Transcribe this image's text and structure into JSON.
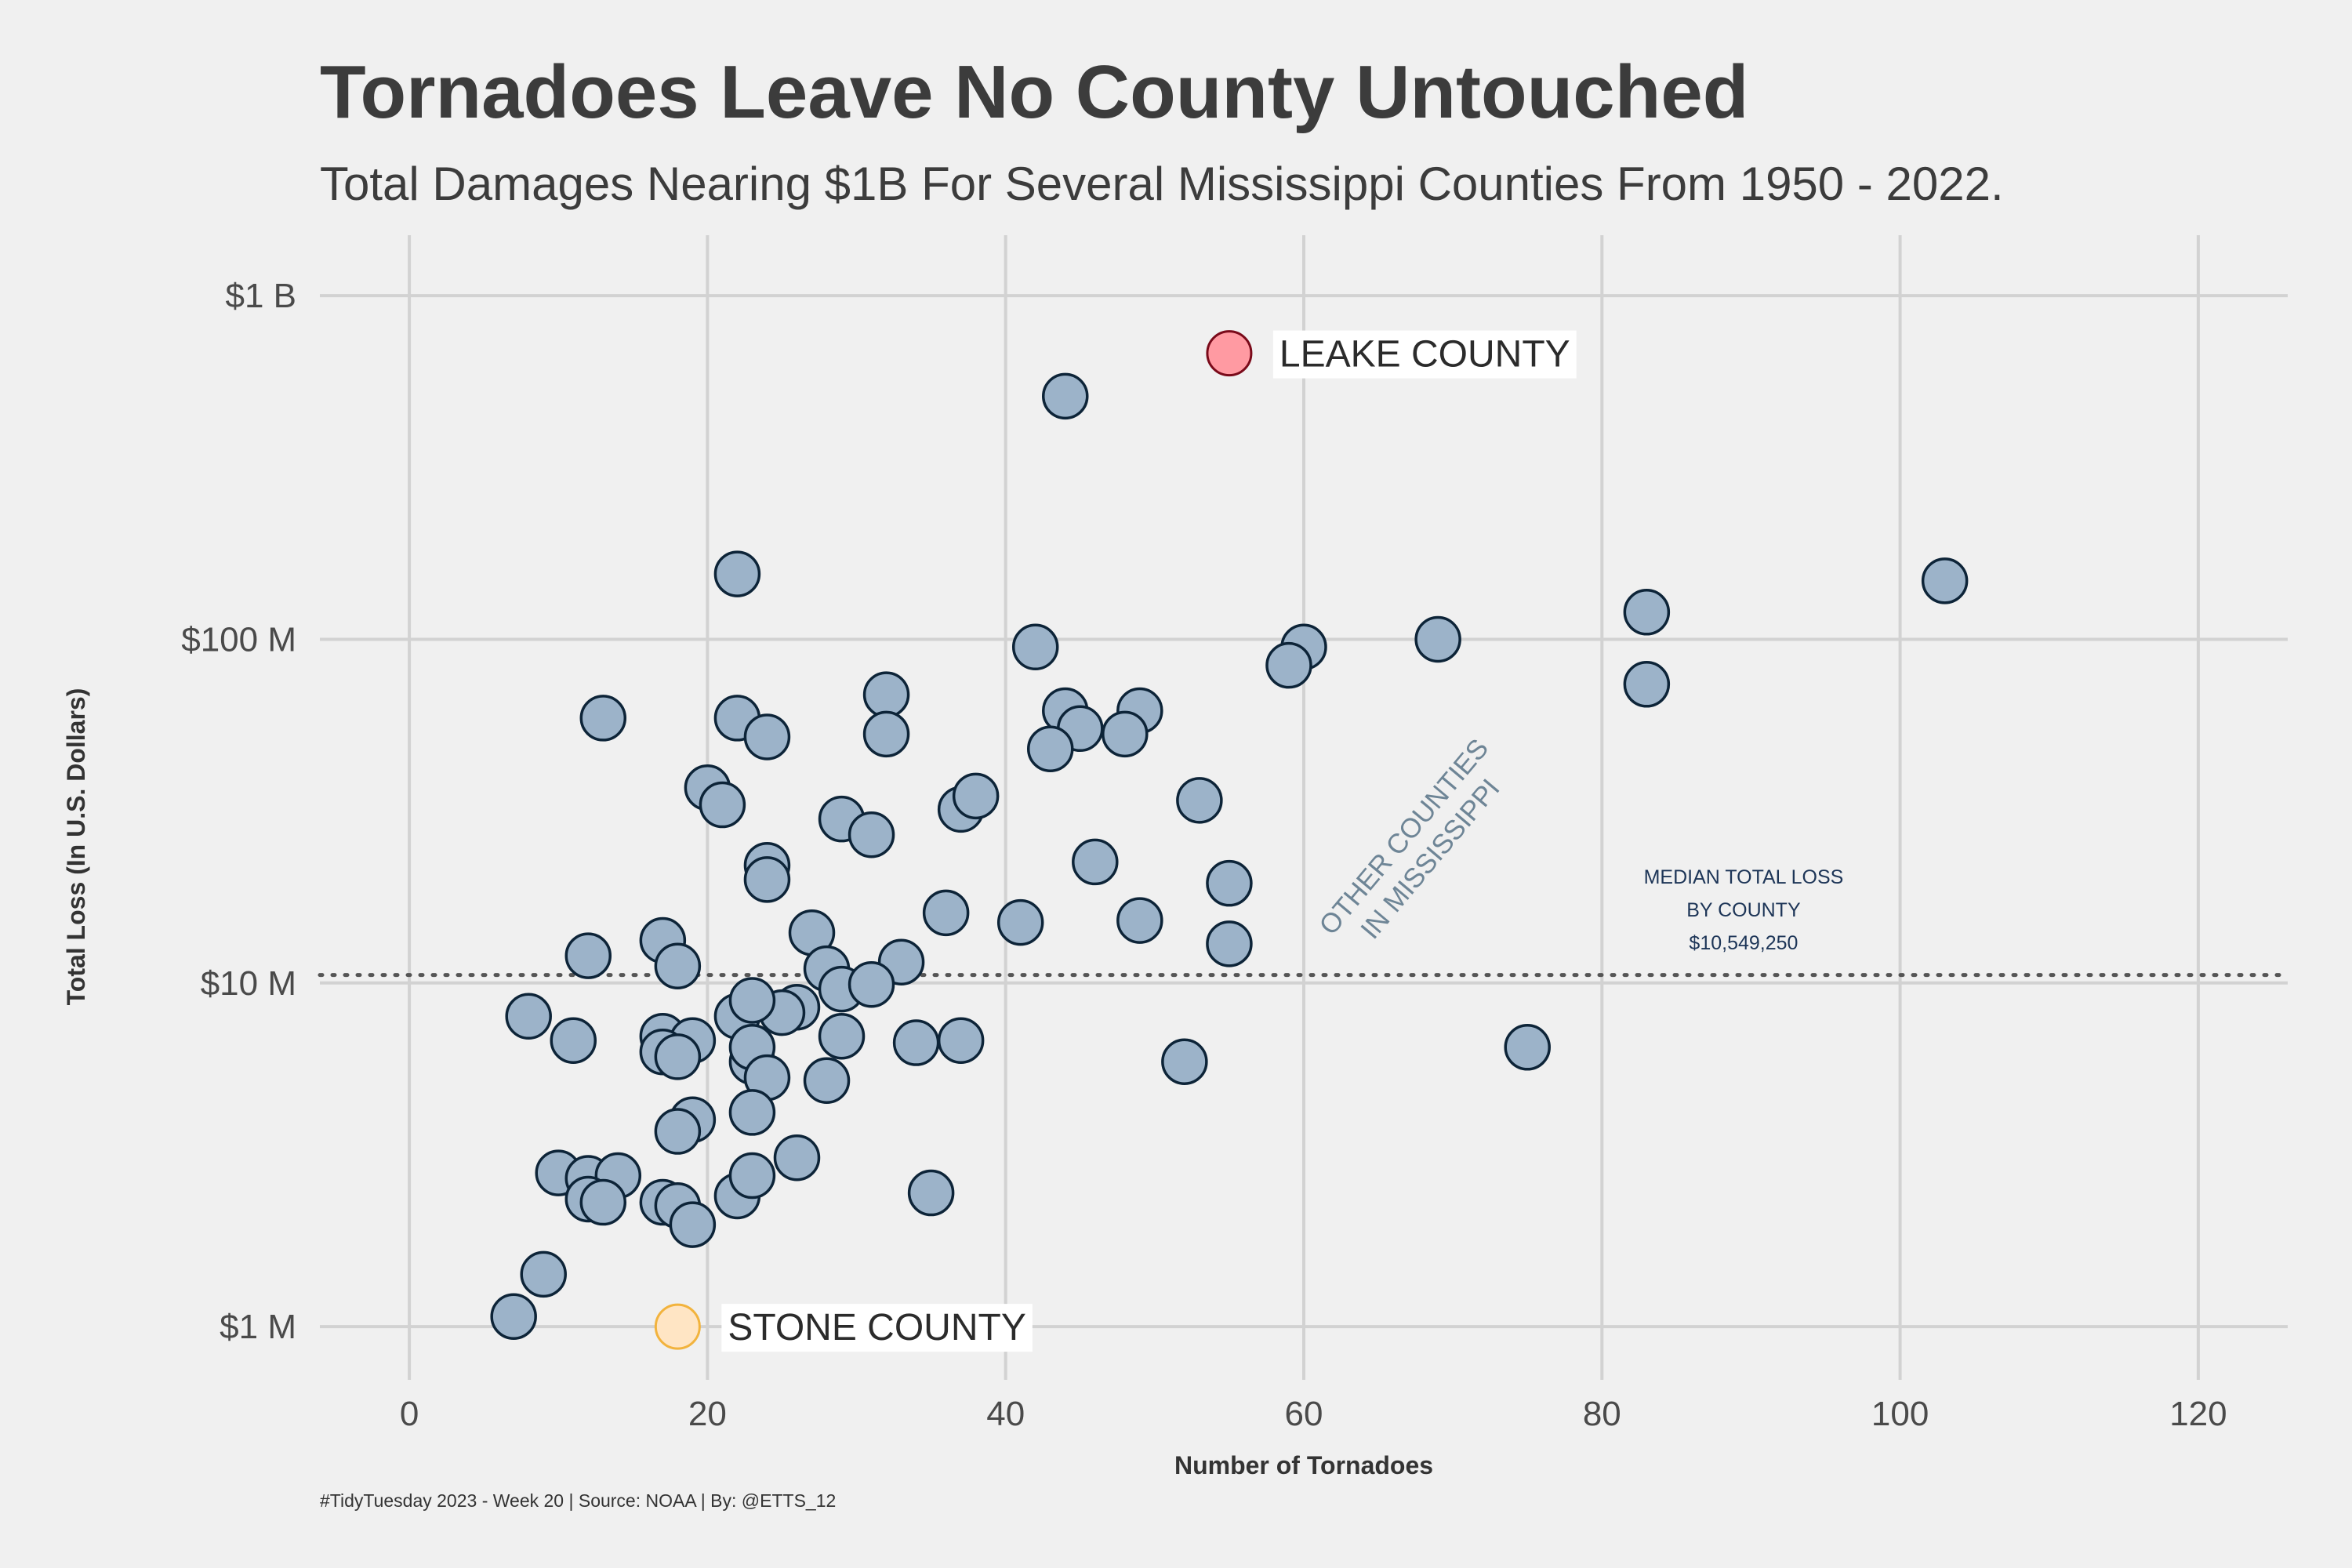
{
  "title": "Tornadoes Leave No County Untouched",
  "subtitle": "Total Damages Nearing $1B For Several Mississippi Counties From 1950 - 2022.",
  "caption": "#TidyTuesday 2023 - Week 20 | Source: NOAA | By: @ETTS_12",
  "colors": {
    "background": "#f0f0f0",
    "grid": "#d2d2d2",
    "point_fill": "#9cb3c9",
    "point_stroke": "#0d2438",
    "leake_fill": "#ff9aa2",
    "leake_stroke": "#7a0a1a",
    "stone_fill": "#ffe5c4",
    "stone_stroke": "#f2b33d",
    "median_line": "#555555",
    "note_text": "#1d3557",
    "other_label": "#6e8596"
  },
  "chart_data": {
    "type": "scatter",
    "xlabel": "Number of Tornadoes",
    "ylabel": "Total Loss (In U.S. Dollars)",
    "xlim": [
      -6,
      126
    ],
    "ylim": [
      700000,
      1500000000
    ],
    "y_scale": "log",
    "grid": true,
    "x_ticks": [
      0,
      20,
      40,
      60,
      80,
      100,
      120
    ],
    "x_tick_labels": [
      "0",
      "20",
      "40",
      "60",
      "80",
      "100",
      "120"
    ],
    "y_ticks": [
      1000000,
      10000000,
      100000000,
      1000000000
    ],
    "y_tick_labels": [
      "$1 M",
      "$10 M",
      "$100 M",
      "$1 B"
    ],
    "median": {
      "value": 10549250,
      "label_lines": [
        "MEDIAN TOTAL LOSS",
        "BY COUNTY",
        "$10,549,250"
      ]
    },
    "other_label_lines": [
      "OTHER COUNTIES",
      "IN MISSISSIPPI"
    ],
    "highlights": [
      {
        "name": "LEAKE COUNTY",
        "x": 55,
        "y": 680000000
      },
      {
        "name": "STONE COUNTY",
        "x": 18,
        "y": 1000000
      }
    ],
    "points": [
      [
        44,
        510000000
      ],
      [
        22,
        155000000
      ],
      [
        103,
        148000000
      ],
      [
        83,
        120000000
      ],
      [
        83,
        74000000
      ],
      [
        69,
        100000000
      ],
      [
        60,
        95000000
      ],
      [
        59,
        84000000
      ],
      [
        42,
        95000000
      ],
      [
        44,
        62000000
      ],
      [
        49,
        62000000
      ],
      [
        45,
        55000000
      ],
      [
        48,
        53000000
      ],
      [
        43,
        48000000
      ],
      [
        13,
        59000000
      ],
      [
        22,
        59000000
      ],
      [
        24,
        52000000
      ],
      [
        32,
        69000000
      ],
      [
        32,
        53000000
      ],
      [
        20,
        37000000
      ],
      [
        21,
        33000000
      ],
      [
        37,
        32000000
      ],
      [
        38,
        35000000
      ],
      [
        53,
        34000000
      ],
      [
        29,
        30000000
      ],
      [
        31,
        27000000
      ],
      [
        24,
        22000000
      ],
      [
        24,
        20000000
      ],
      [
        46,
        22500000
      ],
      [
        55,
        19500000
      ],
      [
        36,
        16000000
      ],
      [
        41,
        15000000
      ],
      [
        49,
        15200000
      ],
      [
        55,
        13000000
      ],
      [
        27,
        14000000
      ],
      [
        17,
        13300000
      ],
      [
        18,
        11200000
      ],
      [
        12,
        12000000
      ],
      [
        28,
        11000000
      ],
      [
        33,
        11500000
      ],
      [
        29,
        9600000
      ],
      [
        31,
        9900000
      ],
      [
        26,
        8500000
      ],
      [
        25,
        8200000
      ],
      [
        22,
        8000000
      ],
      [
        23,
        8900000
      ],
      [
        8,
        8000000
      ],
      [
        11,
        6800000
      ],
      [
        17,
        7000000
      ],
      [
        19,
        6800000
      ],
      [
        17,
        6300000
      ],
      [
        18,
        6100000
      ],
      [
        23,
        5900000
      ],
      [
        23,
        6500000
      ],
      [
        29,
        7000000
      ],
      [
        34,
        6700000
      ],
      [
        37,
        6800000
      ],
      [
        24,
        5300000
      ],
      [
        28,
        5200000
      ],
      [
        52,
        5900000
      ],
      [
        75,
        6500000
      ],
      [
        23,
        4200000
      ],
      [
        19,
        4000000
      ],
      [
        18,
        3700000
      ],
      [
        26,
        3100000
      ],
      [
        10,
        2800000
      ],
      [
        12,
        2700000
      ],
      [
        14,
        2750000
      ],
      [
        12,
        2350000
      ],
      [
        13,
        2300000
      ],
      [
        17,
        2300000
      ],
      [
        18,
        2250000
      ],
      [
        22,
        2400000
      ],
      [
        23,
        2750000
      ],
      [
        35,
        2450000
      ],
      [
        19,
        1980000
      ],
      [
        9,
        1420000
      ],
      [
        7,
        1070000
      ]
    ]
  }
}
